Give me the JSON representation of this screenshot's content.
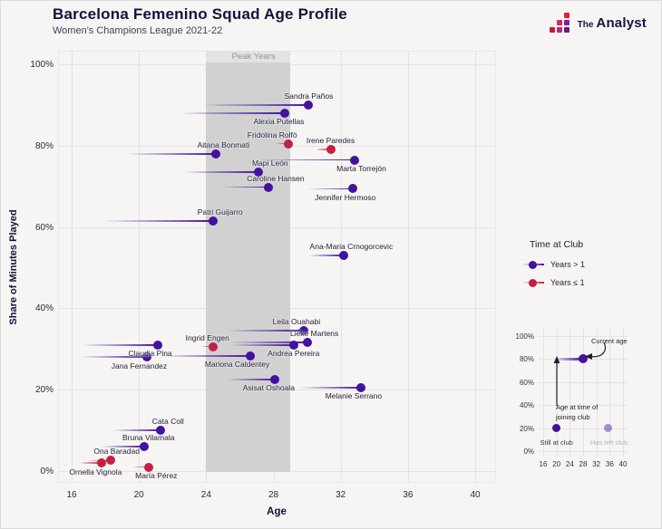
{
  "header": {
    "title": "Barcelona Femenino Squad Age Profile",
    "subtitle": "Women's Champions League 2021-22"
  },
  "brand": {
    "the": "The",
    "analyst": "Analyst"
  },
  "chart_data": {
    "type": "scatter",
    "title": "Barcelona Femenino Squad Age Profile",
    "subtitle": "Women's Champions League 2021-22",
    "xlabel": "Age",
    "ylabel": "Share of Minutes Played",
    "xlim": [
      15.2,
      41.2
    ],
    "ylim": [
      0,
      103
    ],
    "x_ticks": [
      16,
      20,
      24,
      28,
      32,
      36,
      40
    ],
    "y_ticks": [
      0,
      20,
      40,
      60,
      80,
      100
    ],
    "y_tick_labels": [
      "0%",
      "20%",
      "40%",
      "60%",
      "80%",
      "100%"
    ],
    "grid": true,
    "peak_band": {
      "label": "Peak Years",
      "from_age": 24,
      "to_age": 29
    },
    "series": [
      {
        "name": "Sandra Paños",
        "current_age": 30.1,
        "joined_age": 23.7,
        "minutes_pct": 90,
        "time_at_club": "gt1",
        "label_side": "above",
        "label_dx": 0
      },
      {
        "name": "Alexia Putellas",
        "current_age": 28.7,
        "joined_age": 22.4,
        "minutes_pct": 88,
        "time_at_club": "gt1",
        "label_side": "below",
        "label_dx": -7
      },
      {
        "name": "Fridolina Rolfö",
        "current_age": 28.9,
        "joined_age": 28.2,
        "minutes_pct": 80.5,
        "time_at_club": "le1",
        "label_side": "above",
        "label_dx": -18
      },
      {
        "name": "Irene Paredes",
        "current_age": 31.4,
        "joined_age": 30.6,
        "minutes_pct": 79,
        "time_at_club": "le1",
        "label_side": "above",
        "label_dx": 0
      },
      {
        "name": "Aitana Bonmati",
        "current_age": 24.6,
        "joined_age": 19.3,
        "minutes_pct": 78,
        "time_at_club": "gt1",
        "label_side": "above",
        "label_dx": 8
      },
      {
        "name": "Marta Torrejón",
        "current_age": 32.8,
        "joined_age": 26.7,
        "minutes_pct": 76.5,
        "time_at_club": "gt1",
        "label_side": "below",
        "label_dx": 8
      },
      {
        "name": "Mapi León",
        "current_age": 27.1,
        "joined_age": 22.6,
        "minutes_pct": 73.5,
        "time_at_club": "gt1",
        "label_side": "above",
        "label_dx": 13
      },
      {
        "name": "Caroline Hansen",
        "current_age": 27.7,
        "joined_age": 24.8,
        "minutes_pct": 69.8,
        "time_at_club": "gt1",
        "label_side": "above",
        "label_dx": 8
      },
      {
        "name": "Jennifer Hermoso",
        "current_age": 32.7,
        "joined_age": 30.0,
        "minutes_pct": 69.4,
        "time_at_club": "gt1",
        "label_side": "below",
        "label_dx": -8
      },
      {
        "name": "Patri Guijarro",
        "current_age": 24.4,
        "joined_age": 17.9,
        "minutes_pct": 61.5,
        "time_at_club": "gt1",
        "label_side": "above",
        "label_dx": 8
      },
      {
        "name": "Ana-Maria Crnogorcevic",
        "current_age": 32.2,
        "joined_age": 30.1,
        "minutes_pct": 53,
        "time_at_club": "gt1",
        "label_side": "above",
        "label_dx": 8
      },
      {
        "name": "Leila Ouahabi",
        "current_age": 29.8,
        "joined_age": 25.3,
        "minutes_pct": 34.5,
        "time_at_club": "gt1",
        "label_side": "above",
        "label_dx": -8
      },
      {
        "name": "Lieke Martens",
        "current_age": 30.0,
        "joined_age": 25.5,
        "minutes_pct": 31.6,
        "time_at_club": "gt1",
        "label_side": "above",
        "label_dx": 8
      },
      {
        "name": "Ingrid Engen",
        "current_age": 24.4,
        "joined_age": 23.7,
        "minutes_pct": 30.6,
        "time_at_club": "le1",
        "label_side": "above",
        "label_dx": -6
      },
      {
        "name": "Claudia Pina",
        "current_age": 21.1,
        "joined_age": 16.6,
        "minutes_pct": 31,
        "time_at_club": "gt1",
        "label_side": "below",
        "label_dx": -8
      },
      {
        "name": "Andrea Pereira",
        "current_age": 29.2,
        "joined_age": 25.4,
        "minutes_pct": 31,
        "time_at_club": "gt1",
        "label_side": "below",
        "label_dx": 0
      },
      {
        "name": "Jana Fernandez",
        "current_age": 20.5,
        "joined_age": 16.6,
        "minutes_pct": 28,
        "time_at_club": "gt1",
        "label_side": "below",
        "label_dx": -9
      },
      {
        "name": "Mariona Caldentey",
        "current_age": 26.6,
        "joined_age": 21.2,
        "minutes_pct": 28.3,
        "time_at_club": "gt1",
        "label_side": "below",
        "label_dx": -14
      },
      {
        "name": "Asisat Oshoala",
        "current_age": 28.1,
        "joined_age": 25.3,
        "minutes_pct": 22.5,
        "time_at_club": "gt1",
        "label_side": "below",
        "label_dx": -7
      },
      {
        "name": "Melanie Serrano",
        "current_age": 33.2,
        "joined_age": 29.6,
        "minutes_pct": 20.5,
        "time_at_club": "gt1",
        "label_side": "below",
        "label_dx": -8
      },
      {
        "name": "Cata Coll",
        "current_age": 21.3,
        "joined_age": 18.4,
        "minutes_pct": 10,
        "time_at_club": "gt1",
        "label_side": "above",
        "label_dx": 8
      },
      {
        "name": "Bruna Vilamala",
        "current_age": 20.3,
        "joined_age": 17.8,
        "minutes_pct": 6,
        "time_at_club": "gt1",
        "label_side": "above",
        "label_dx": 5
      },
      {
        "name": "Ona Baradad",
        "current_age": 18.3,
        "joined_age": 17.1,
        "minutes_pct": 2.6,
        "time_at_club": "le1",
        "label_side": "above",
        "label_dx": 7
      },
      {
        "name": "Ornella Vignola",
        "current_age": 17.8,
        "joined_age": 16.6,
        "minutes_pct": 2,
        "time_at_club": "le1",
        "label_side": "below",
        "label_dx": -7
      },
      {
        "name": "María Pérez",
        "current_age": 20.6,
        "joined_age": 19.7,
        "minutes_pct": 1,
        "time_at_club": "le1",
        "label_side": "below",
        "label_dx": 8
      }
    ],
    "legend_position": "right"
  },
  "legend": {
    "title": "Time at Club",
    "items": [
      {
        "label": "Years > 1",
        "key": "gt1",
        "color": "#43129e"
      },
      {
        "label": "Years ≤ 1",
        "key": "le1",
        "color": "#c42044"
      }
    ]
  },
  "inset": {
    "x_ticks": [
      16,
      20,
      24,
      28,
      32,
      36,
      40
    ],
    "y_ticks": [
      0,
      20,
      40,
      60,
      80,
      100
    ],
    "y_tick_labels": [
      "0%",
      "20%",
      "40%",
      "60%",
      "80%",
      "100%"
    ],
    "labels": {
      "current_age": "Current age",
      "joining_age": "Age at time of joining club",
      "still_at_club": "Still at club",
      "has_left_club": "Has left club"
    },
    "example": {
      "joined_age": 20,
      "current_age": 28,
      "minutes_pct": 80,
      "still_dot_age": 20,
      "left_dot_age": 35.5,
      "bottom_dots_pct": 20
    }
  },
  "colors": {
    "background": "#f6f5f3",
    "purple": "#43129e",
    "red": "#c42044",
    "band": "#d2d1d1",
    "grid": "#e4e2e4",
    "title": "#17103d",
    "text": "#2b2936",
    "muted": "#97959b"
  }
}
